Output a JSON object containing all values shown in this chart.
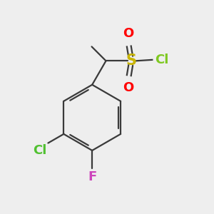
{
  "background_color": "#eeeeee",
  "bond_color": "#3a3a3a",
  "atom_colors": {
    "Cl_sulfonyl": "#7ec820",
    "S": "#c8b400",
    "O": "#ff0000",
    "Cl_ring": "#50c030",
    "F": "#cc44bb"
  },
  "font_size_S": 14,
  "font_size_O": 13,
  "font_size_Cl": 13,
  "font_size_F": 13
}
